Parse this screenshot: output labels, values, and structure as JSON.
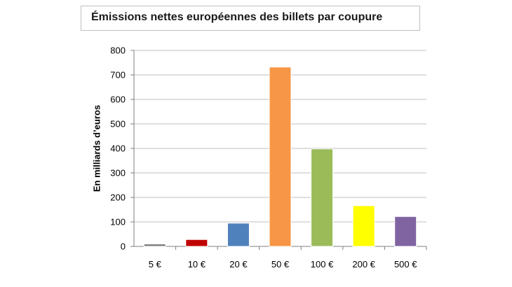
{
  "chart_data": {
    "type": "bar",
    "title": "Émissions nettes européennes des billets par coupure",
    "xlabel": "",
    "ylabel": "En milliards d’euros",
    "categories": [
      "5 €",
      "10 €",
      "20 €",
      "50 €",
      "100 €",
      "200 €",
      "500 €"
    ],
    "values": [
      10,
      28,
      95,
      732,
      398,
      166,
      122
    ],
    "colors": [
      "#808080",
      "#c00000",
      "#4f81bd",
      "#f79646",
      "#9bbb59",
      "#ffff00",
      "#8064a2"
    ],
    "ylim": [
      0,
      800
    ],
    "yticks": [
      0,
      100,
      200,
      300,
      400,
      500,
      600,
      700,
      800
    ],
    "grid": true,
    "legend": "none"
  }
}
